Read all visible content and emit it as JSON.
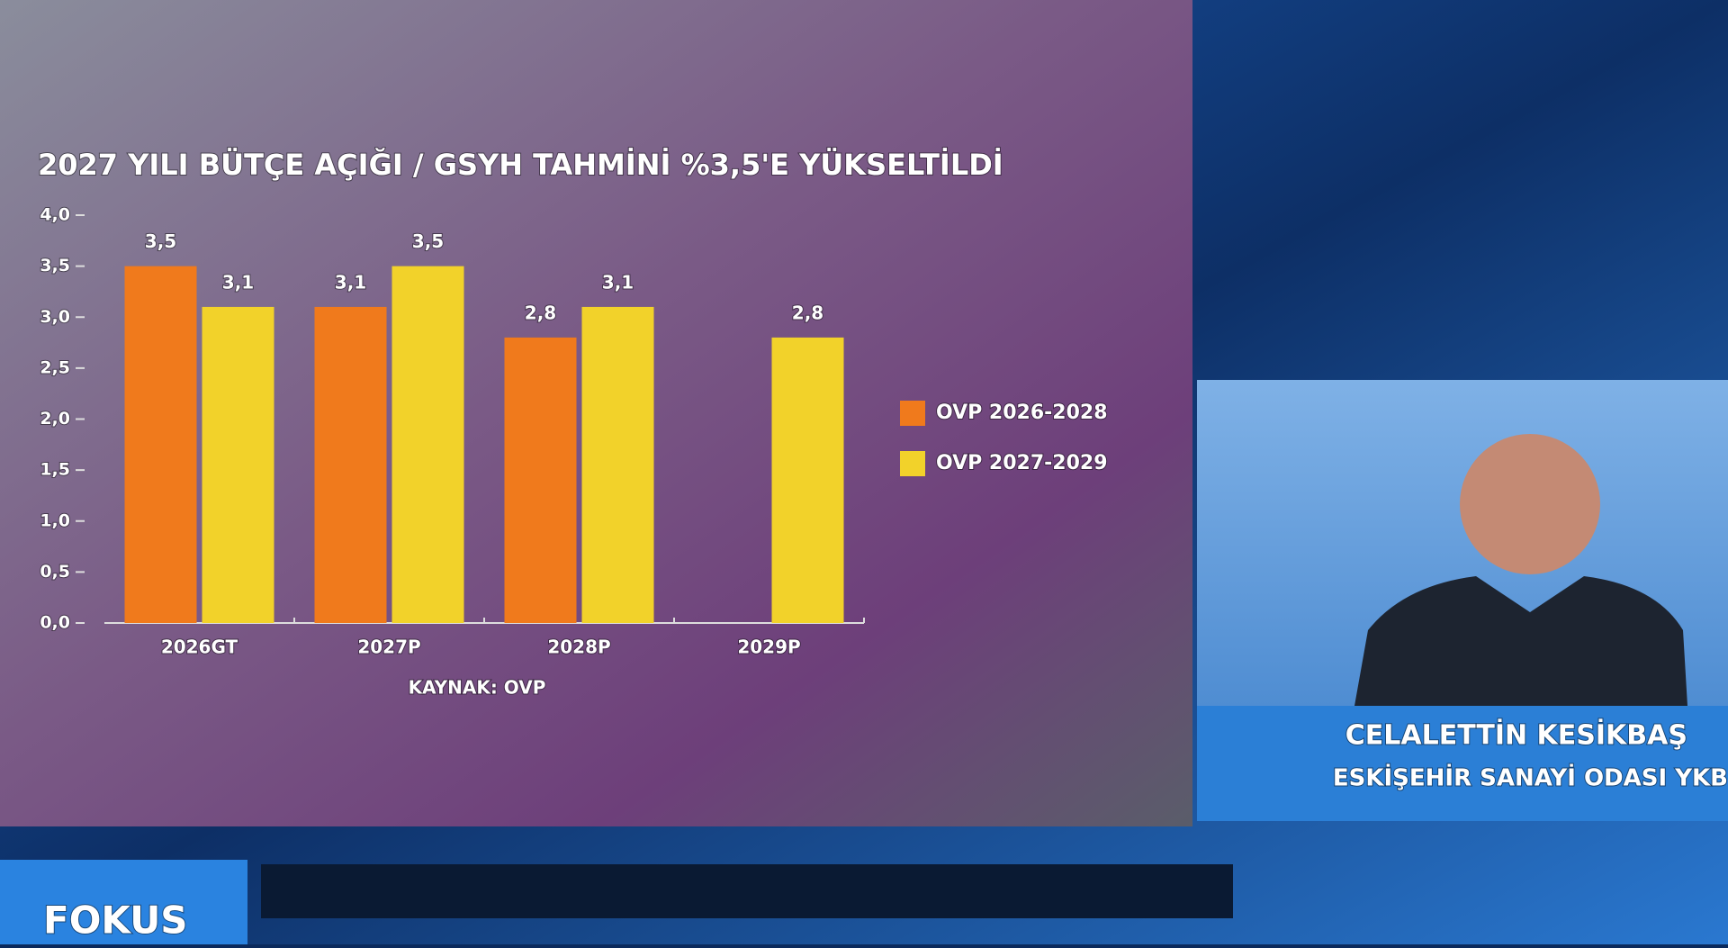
{
  "chart_data": {
    "type": "bar",
    "title": "2027 YILI BÜTÇE AÇIĞI / GSYH TAHMİNİ %3,5'E YÜKSELTİLDİ",
    "source": "KAYNAK: OVP",
    "categories": [
      "2026GT",
      "2027P",
      "2028P",
      "2029P"
    ],
    "series": [
      {
        "name": "OVP 2026-2028",
        "color": "#f07a1c",
        "values": [
          3.5,
          3.1,
          2.8,
          null
        ],
        "value_labels": [
          "3,5",
          "3,1",
          "2,8",
          null
        ]
      },
      {
        "name": "OVP 2027-2029",
        "color": "#f2d22a",
        "values": [
          3.1,
          3.5,
          3.1,
          2.8
        ],
        "value_labels": [
          "3,1",
          "3,5",
          "3,1",
          "2,8"
        ]
      }
    ],
    "ylim": [
      0,
      4
    ],
    "yticks": [
      {
        "value": 0,
        "label": "0,0"
      },
      {
        "value": 0.5,
        "label": "0,5"
      },
      {
        "value": 1,
        "label": "1,0"
      },
      {
        "value": 1.5,
        "label": "1,5"
      },
      {
        "value": 2,
        "label": "2,0"
      },
      {
        "value": 2.5,
        "label": "2,5"
      },
      {
        "value": 3,
        "label": "3,0"
      },
      {
        "value": 3.5,
        "label": "3,5"
      },
      {
        "value": 4,
        "label": "4,0"
      }
    ],
    "legend": "right"
  },
  "overlay": {
    "name": "CELALETTİN KESİKBAŞ",
    "role": "ESKİŞEHİR SANAYİ ODASI YKB",
    "program": "FOKUS"
  }
}
